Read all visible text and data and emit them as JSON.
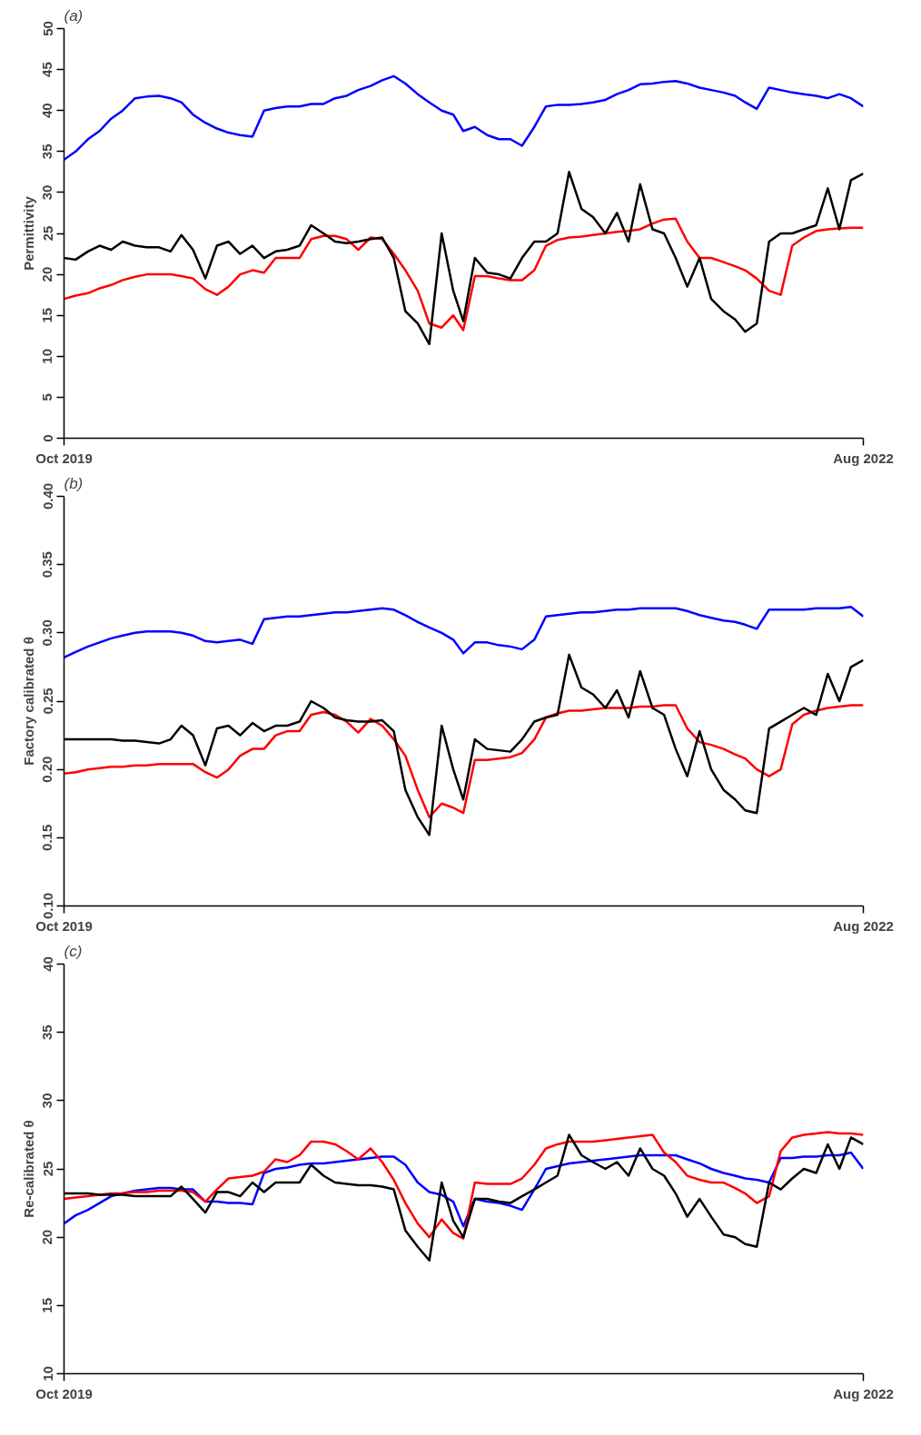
{
  "chart_data": [
    {
      "type": "line",
      "title": "(a)",
      "ylabel": "Permittivity",
      "x": [
        "2019-10-01",
        "2019-10-16",
        "2019-11-01",
        "2019-11-16",
        "2019-12-01",
        "2019-12-16",
        "2020-01-01",
        "2020-01-16",
        "2020-02-01",
        "2020-02-16",
        "2020-03-01",
        "2020-03-16",
        "2020-04-01",
        "2020-04-16",
        "2020-05-01",
        "2020-05-16",
        "2020-06-01",
        "2020-06-16",
        "2020-07-01",
        "2020-07-16",
        "2020-08-01",
        "2020-08-16",
        "2020-09-01",
        "2020-09-16",
        "2020-10-01",
        "2020-10-16",
        "2020-11-01",
        "2020-11-16",
        "2020-12-01",
        "2020-12-16",
        "2021-01-01",
        "2021-01-16",
        "2021-02-01",
        "2021-02-16",
        "2021-03-01",
        "2021-03-16",
        "2021-04-01",
        "2021-04-16",
        "2021-05-01",
        "2021-05-16",
        "2021-06-01",
        "2021-06-16",
        "2021-07-01",
        "2021-07-16",
        "2021-08-01",
        "2021-08-16",
        "2021-09-01",
        "2021-09-16",
        "2021-10-01",
        "2021-10-16",
        "2021-11-01",
        "2021-11-16",
        "2021-12-01",
        "2021-12-16",
        "2022-01-01",
        "2022-01-16",
        "2022-02-01",
        "2022-02-16",
        "2022-03-01",
        "2022-03-16",
        "2022-04-01",
        "2022-04-16",
        "2022-05-01",
        "2022-05-16",
        "2022-06-01",
        "2022-06-16",
        "2022-07-01",
        "2022-07-16",
        "2022-08-01"
      ],
      "xlim": [
        "2019-10-01",
        "2022-08-01"
      ],
      "xticks": [
        {
          "value": "2019-10-01",
          "label": "Oct 2019"
        },
        {
          "value": "2022-08-01",
          "label": "Aug 2022"
        }
      ],
      "ylim": [
        0,
        50
      ],
      "yticks": [
        0,
        5,
        10,
        15,
        20,
        25,
        30,
        35,
        40,
        45,
        50
      ],
      "grid": false,
      "series": [
        {
          "color": "#0000ff",
          "values": [
            34,
            35,
            36.5,
            37.5,
            39,
            40,
            41.5,
            41.7,
            41.8,
            41.5,
            41,
            39.5,
            38.5,
            37.8,
            37.3,
            37,
            36.8,
            40,
            40.3,
            40.5,
            40.5,
            40.8,
            40.8,
            41.5,
            41.8,
            42.5,
            43,
            43.7,
            44.2,
            43.3,
            42,
            41,
            40,
            39.5,
            37.5,
            38,
            37,
            36.5,
            36.5,
            35.7,
            38,
            40.5,
            40.7,
            40.7,
            40.8,
            41,
            41.3,
            42,
            42.5,
            43.2,
            43.3,
            43.5,
            43.6,
            43.3,
            42.8,
            42.5,
            42.2,
            41.8,
            41,
            40.2,
            42.8,
            42.5,
            42.2,
            42,
            41.8,
            41.5,
            42,
            41.5,
            40.5
          ]
        },
        {
          "color": "#ff0000",
          "values": [
            17,
            17.4,
            17.7,
            18.3,
            18.7,
            19.3,
            19.7,
            20,
            20,
            20,
            19.8,
            19.5,
            18.2,
            17.5,
            18.5,
            20,
            20.5,
            20.2,
            22,
            22,
            22,
            24.3,
            24.7,
            24.7,
            24.3,
            23,
            24.5,
            24.3,
            22.5,
            20.5,
            18,
            14,
            13.5,
            15,
            13.2,
            19.8,
            19.8,
            19.5,
            19.3,
            19.3,
            20.5,
            23.5,
            24.2,
            24.5,
            24.6,
            24.8,
            25,
            25.2,
            25.3,
            25.5,
            26.2,
            26.7,
            26.8,
            24,
            22,
            22,
            21.5,
            21,
            20.5,
            19.5,
            18,
            17.5,
            23.5,
            24.5,
            25.3,
            25.5,
            25.6,
            25.7,
            25.7
          ]
        },
        {
          "color": "#000000",
          "values": [
            22,
            21.8,
            22.8,
            23.5,
            23,
            24,
            23.5,
            23.3,
            23.3,
            22.8,
            24.8,
            23,
            19.5,
            23.5,
            24,
            22.5,
            23.5,
            22,
            22.8,
            23,
            23.5,
            26,
            25,
            24,
            23.8,
            24,
            24.3,
            24.5,
            22,
            15.5,
            14,
            11.5,
            25,
            18,
            14.3,
            22,
            20.2,
            20,
            19.5,
            22,
            24,
            24,
            25,
            32.5,
            28,
            27,
            25,
            27.5,
            24,
            31,
            25.5,
            25,
            22,
            18.5,
            22,
            17,
            15.5,
            14.5,
            13,
            14,
            24,
            25,
            25,
            25.5,
            26,
            30.5,
            25.5,
            31.5,
            32.3
          ]
        }
      ]
    },
    {
      "type": "line",
      "title": "(b)",
      "ylabel": "Factory calibrated θ",
      "x": [
        "2019-10-01",
        "2019-10-16",
        "2019-11-01",
        "2019-11-16",
        "2019-12-01",
        "2019-12-16",
        "2020-01-01",
        "2020-01-16",
        "2020-02-01",
        "2020-02-16",
        "2020-03-01",
        "2020-03-16",
        "2020-04-01",
        "2020-04-16",
        "2020-05-01",
        "2020-05-16",
        "2020-06-01",
        "2020-06-16",
        "2020-07-01",
        "2020-07-16",
        "2020-08-01",
        "2020-08-16",
        "2020-09-01",
        "2020-09-16",
        "2020-10-01",
        "2020-10-16",
        "2020-11-01",
        "2020-11-16",
        "2020-12-01",
        "2020-12-16",
        "2021-01-01",
        "2021-01-16",
        "2021-02-01",
        "2021-02-16",
        "2021-03-01",
        "2021-03-16",
        "2021-04-01",
        "2021-04-16",
        "2021-05-01",
        "2021-05-16",
        "2021-06-01",
        "2021-06-16",
        "2021-07-01",
        "2021-07-16",
        "2021-08-01",
        "2021-08-16",
        "2021-09-01",
        "2021-09-16",
        "2021-10-01",
        "2021-10-16",
        "2021-11-01",
        "2021-11-16",
        "2021-12-01",
        "2021-12-16",
        "2022-01-01",
        "2022-01-16",
        "2022-02-01",
        "2022-02-16",
        "2022-03-01",
        "2022-03-16",
        "2022-04-01",
        "2022-04-16",
        "2022-05-01",
        "2022-05-16",
        "2022-06-01",
        "2022-06-16",
        "2022-07-01",
        "2022-07-16",
        "2022-08-01"
      ],
      "xlim": [
        "2019-10-01",
        "2022-08-01"
      ],
      "xticks": [
        {
          "value": "2019-10-01",
          "label": "Oct 2019"
        },
        {
          "value": "2022-08-01",
          "label": "Aug 2022"
        }
      ],
      "ylim": [
        0.1,
        0.4
      ],
      "yticks": [
        {
          "value": 0.1,
          "label": "0.10"
        },
        0.15,
        {
          "value": 0.2,
          "label": "0.20"
        },
        0.25,
        {
          "value": 0.3,
          "label": "0.30"
        },
        0.35,
        {
          "value": 0.4,
          "label": "0.40"
        }
      ],
      "grid": false,
      "series": [
        {
          "color": "#0000ff",
          "values": [
            0.282,
            0.286,
            0.29,
            0.293,
            0.296,
            0.298,
            0.3,
            0.301,
            0.301,
            0.301,
            0.3,
            0.298,
            0.294,
            0.293,
            0.294,
            0.295,
            0.292,
            0.31,
            0.311,
            0.312,
            0.312,
            0.313,
            0.314,
            0.315,
            0.315,
            0.316,
            0.317,
            0.318,
            0.317,
            0.313,
            0.308,
            0.304,
            0.3,
            0.295,
            0.285,
            0.293,
            0.293,
            0.291,
            0.29,
            0.288,
            0.295,
            0.312,
            0.313,
            0.314,
            0.315,
            0.315,
            0.316,
            0.317,
            0.317,
            0.318,
            0.318,
            0.318,
            0.318,
            0.316,
            0.313,
            0.311,
            0.309,
            0.308,
            0.306,
            0.303,
            0.317,
            0.317,
            0.317,
            0.317,
            0.318,
            0.318,
            0.318,
            0.319,
            0.312
          ]
        },
        {
          "color": "#ff0000",
          "values": [
            0.197,
            0.198,
            0.2,
            0.201,
            0.202,
            0.202,
            0.203,
            0.203,
            0.204,
            0.204,
            0.204,
            0.204,
            0.198,
            0.194,
            0.2,
            0.21,
            0.215,
            0.215,
            0.225,
            0.228,
            0.228,
            0.24,
            0.242,
            0.24,
            0.235,
            0.227,
            0.237,
            0.232,
            0.222,
            0.21,
            0.185,
            0.165,
            0.175,
            0.172,
            0.168,
            0.207,
            0.207,
            0.208,
            0.209,
            0.212,
            0.222,
            0.238,
            0.241,
            0.243,
            0.243,
            0.244,
            0.245,
            0.245,
            0.245,
            0.246,
            0.246,
            0.247,
            0.247,
            0.23,
            0.22,
            0.218,
            0.215,
            0.211,
            0.208,
            0.2,
            0.195,
            0.2,
            0.233,
            0.24,
            0.243,
            0.245,
            0.246,
            0.247,
            0.247
          ]
        },
        {
          "color": "#000000",
          "values": [
            0.222,
            0.222,
            0.222,
            0.222,
            0.222,
            0.221,
            0.221,
            0.22,
            0.219,
            0.222,
            0.232,
            0.225,
            0.203,
            0.23,
            0.232,
            0.225,
            0.234,
            0.228,
            0.232,
            0.232,
            0.235,
            0.25,
            0.245,
            0.238,
            0.236,
            0.235,
            0.235,
            0.236,
            0.228,
            0.185,
            0.165,
            0.152,
            0.232,
            0.2,
            0.178,
            0.222,
            0.215,
            0.214,
            0.213,
            0.222,
            0.235,
            0.238,
            0.24,
            0.284,
            0.26,
            0.255,
            0.245,
            0.258,
            0.238,
            0.272,
            0.245,
            0.24,
            0.215,
            0.195,
            0.228,
            0.2,
            0.185,
            0.178,
            0.17,
            0.168,
            0.23,
            0.235,
            0.24,
            0.245,
            0.24,
            0.27,
            0.25,
            0.275,
            0.28
          ]
        }
      ]
    },
    {
      "type": "line",
      "title": "(c)",
      "ylabel": "Re-calibrated θ",
      "x": [
        "2019-10-01",
        "2019-10-16",
        "2019-11-01",
        "2019-11-16",
        "2019-12-01",
        "2019-12-16",
        "2020-01-01",
        "2020-01-16",
        "2020-02-01",
        "2020-02-16",
        "2020-03-01",
        "2020-03-16",
        "2020-04-01",
        "2020-04-16",
        "2020-05-01",
        "2020-05-16",
        "2020-06-01",
        "2020-06-16",
        "2020-07-01",
        "2020-07-16",
        "2020-08-01",
        "2020-08-16",
        "2020-09-01",
        "2020-09-16",
        "2020-10-01",
        "2020-10-16",
        "2020-11-01",
        "2020-11-16",
        "2020-12-01",
        "2020-12-16",
        "2021-01-01",
        "2021-01-16",
        "2021-02-01",
        "2021-02-16",
        "2021-03-01",
        "2021-03-16",
        "2021-04-01",
        "2021-04-16",
        "2021-05-01",
        "2021-05-16",
        "2021-06-01",
        "2021-06-16",
        "2021-07-01",
        "2021-07-16",
        "2021-08-01",
        "2021-08-16",
        "2021-09-01",
        "2021-09-16",
        "2021-10-01",
        "2021-10-16",
        "2021-11-01",
        "2021-11-16",
        "2021-12-01",
        "2021-12-16",
        "2022-01-01",
        "2022-01-16",
        "2022-02-01",
        "2022-02-16",
        "2022-03-01",
        "2022-03-16",
        "2022-04-01",
        "2022-04-16",
        "2022-05-01",
        "2022-05-16",
        "2022-06-01",
        "2022-06-16",
        "2022-07-01",
        "2022-07-16",
        "2022-08-01"
      ],
      "xlim": [
        "2019-10-01",
        "2022-08-01"
      ],
      "xticks": [
        {
          "value": "2019-10-01",
          "label": "Oct 2019"
        },
        {
          "value": "2022-08-01",
          "label": "Aug 2022"
        }
      ],
      "ylim": [
        10,
        40
      ],
      "yticks": [
        10,
        15,
        20,
        25,
        30,
        35,
        40
      ],
      "grid": false,
      "series": [
        {
          "color": "#0000ff",
          "values": [
            21,
            21.6,
            22,
            22.5,
            23,
            23.2,
            23.4,
            23.5,
            23.6,
            23.6,
            23.5,
            23.5,
            22.6,
            22.6,
            22.5,
            22.5,
            22.4,
            24.7,
            25,
            25.1,
            25.3,
            25.4,
            25.4,
            25.5,
            25.6,
            25.7,
            25.8,
            25.9,
            25.9,
            25.3,
            24,
            23.3,
            23.1,
            22.6,
            20.8,
            22.8,
            22.6,
            22.5,
            22.3,
            22,
            23.5,
            25,
            25.2,
            25.4,
            25.5,
            25.6,
            25.7,
            25.8,
            25.9,
            26,
            26,
            26,
            26,
            25.7,
            25.4,
            25,
            24.7,
            24.5,
            24.3,
            24.2,
            24,
            25.8,
            25.8,
            25.9,
            25.9,
            26,
            26,
            26.2,
            25
          ]
        },
        {
          "color": "#ff0000",
          "values": [
            22.8,
            22.9,
            23,
            23.1,
            23.2,
            23.2,
            23.3,
            23.3,
            23.4,
            23.4,
            23.4,
            23.3,
            22.6,
            23.5,
            24.3,
            24.4,
            24.5,
            24.8,
            25.7,
            25.5,
            26,
            27,
            27,
            26.8,
            26.3,
            25.7,
            26.5,
            25.5,
            24.2,
            22.5,
            21,
            20,
            21.3,
            20.3,
            19.9,
            24,
            23.9,
            23.9,
            23.9,
            24.3,
            25.3,
            26.5,
            26.8,
            27,
            27,
            27,
            27.1,
            27.2,
            27.3,
            27.4,
            27.5,
            26.2,
            25.5,
            24.5,
            24.2,
            24,
            24,
            23.6,
            23.2,
            22.5,
            23,
            26.3,
            27.3,
            27.5,
            27.6,
            27.7,
            27.6,
            27.6,
            27.5
          ]
        },
        {
          "color": "#000000",
          "values": [
            23.2,
            23.2,
            23.2,
            23.1,
            23.1,
            23.1,
            23,
            23,
            23,
            23,
            23.7,
            22.8,
            21.8,
            23.3,
            23.3,
            23,
            24,
            23.3,
            24,
            24,
            24,
            25.3,
            24.5,
            24,
            23.9,
            23.8,
            23.8,
            23.7,
            23.5,
            20.5,
            19.3,
            18.3,
            24,
            21.2,
            20,
            22.8,
            22.8,
            22.6,
            22.5,
            23,
            23.5,
            24,
            24.5,
            27.5,
            26,
            25.5,
            25,
            25.5,
            24.5,
            26.5,
            25,
            24.5,
            23.2,
            21.5,
            22.8,
            21.5,
            20.2,
            20,
            19.5,
            19.3,
            24,
            23.5,
            24.3,
            25,
            24.7,
            26.8,
            25,
            27.3,
            26.8
          ]
        }
      ]
    }
  ]
}
